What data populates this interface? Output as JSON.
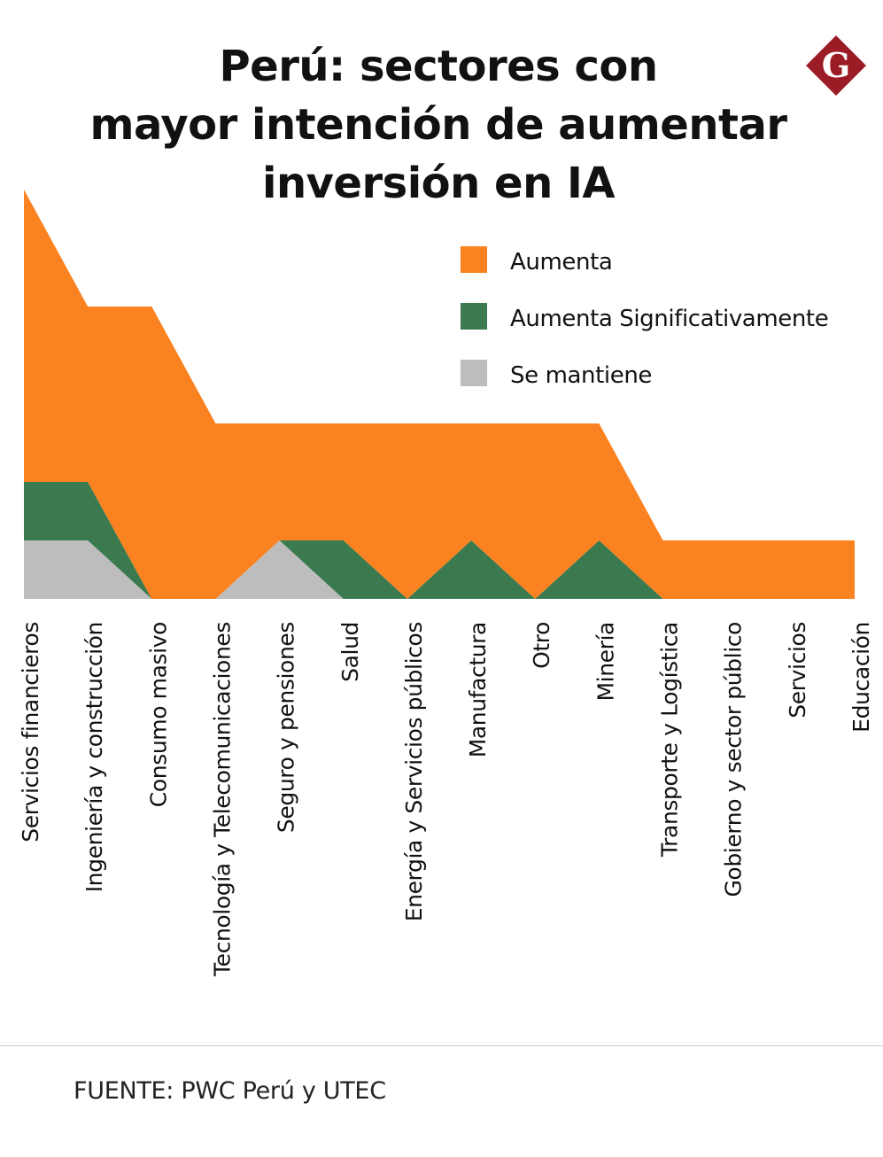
{
  "title_lines": [
    "Perú: sectores con",
    "mayor intención de aumentar",
    "inversión en IA"
  ],
  "logo": {
    "letter": "G",
    "color": "#9b1c24"
  },
  "source": "FUENTE: PWC Perú y UTEC",
  "colors": {
    "aumenta": "#fa8220",
    "aumenta_significativamente": "#3a7a4e",
    "se_mantiene": "#bdbdbd"
  },
  "chart_data": {
    "type": "area",
    "stacked": true,
    "categories": [
      "Servicios financieros",
      "Ingeniería y construcción",
      "Consumo masivo",
      "Tecnología y Telecomunicaciones",
      "Seguro y pensiones",
      "Salud",
      "Energía y Servicios públicos",
      "Manufactura",
      "Otro",
      "Minería",
      "Transporte y Logística",
      "Gobierno y sector público",
      "Servicios",
      "Educación"
    ],
    "series": [
      {
        "name": "Se mantiene",
        "color": "#bdbdbd",
        "values": [
          1,
          1,
          0,
          0,
          1,
          0,
          0,
          0,
          0,
          0,
          0,
          0,
          0,
          0
        ]
      },
      {
        "name": "Aumenta Significativamente",
        "color": "#3a7a4e",
        "values": [
          1,
          1,
          0,
          0,
          0,
          1,
          0,
          1,
          0,
          1,
          0,
          0,
          0,
          0
        ]
      },
      {
        "name": "Aumenta",
        "color": "#fa8220",
        "values": [
          5,
          3,
          5,
          3,
          2,
          2,
          3,
          2,
          3,
          2,
          1,
          1,
          1,
          1
        ]
      }
    ],
    "legend": [
      "Aumenta",
      "Aumenta Significativamente",
      "Se mantiene"
    ],
    "legend_position": "top-right",
    "ylim": [
      0,
      7
    ],
    "grid": false
  }
}
